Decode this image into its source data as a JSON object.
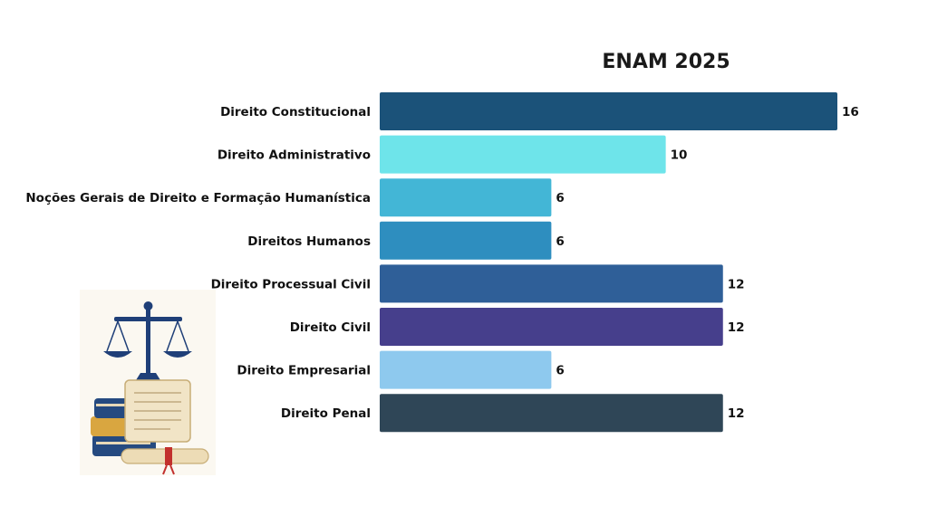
{
  "chart_data": {
    "type": "bar",
    "orientation": "horizontal",
    "title": "ENAM 2025",
    "categories": [
      "Direito Constitucional",
      "Direito Administrativo",
      "Noções Gerais de Direito e Formação Humanística",
      "Direitos Humanos",
      "Direito Processual Civil",
      "Direito Civil",
      "Direito Empresarial",
      "Direito Penal"
    ],
    "values": [
      16,
      10,
      6,
      6,
      12,
      12,
      6,
      12
    ],
    "colors": [
      "#1b5279",
      "#6ee4ea",
      "#43b6d6",
      "#2e8ebf",
      "#2f5f98",
      "#463f8c",
      "#8ec9ee",
      "#2f4657"
    ],
    "xlim": [
      0,
      16
    ],
    "grid": false,
    "legend": "none"
  },
  "illustration": {
    "icon": "scales-of-justice-books-icon"
  }
}
